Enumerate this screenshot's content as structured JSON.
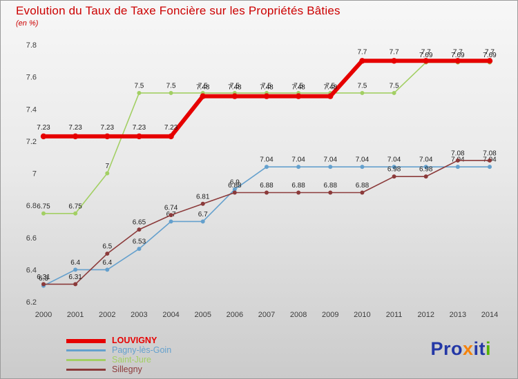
{
  "title": "Evolution du Taux de Taxe Foncière sur les Propriétés Bâties",
  "subtitle": "(en %)",
  "chart_data": {
    "type": "line",
    "x": [
      2000,
      2001,
      2002,
      2003,
      2004,
      2005,
      2006,
      2007,
      2008,
      2009,
      2010,
      2011,
      2012,
      2013,
      2014
    ],
    "xlabel": "",
    "ylabel": "",
    "ylim": [
      6.2,
      7.8
    ],
    "yticks": [
      6.2,
      6.4,
      6.6,
      6.8,
      7,
      7.2,
      7.4,
      7.6,
      7.8
    ],
    "grid": false,
    "legend_position": "bottom-left",
    "series": [
      {
        "name": "LOUVIGNY",
        "color": "#e60000",
        "thick": true,
        "values": [
          7.23,
          7.23,
          7.23,
          7.23,
          7.23,
          7.48,
          7.48,
          7.48,
          7.48,
          7.48,
          7.7,
          7.7,
          7.7,
          7.7,
          7.7
        ]
      },
      {
        "name": "Pagny-lès-Goin",
        "color": "#64a0cd",
        "thick": false,
        "values": [
          6.3,
          6.4,
          6.4,
          6.53,
          6.7,
          6.7,
          6.9,
          7.04,
          7.04,
          7.04,
          7.04,
          7.04,
          7.04,
          7.04,
          7.04
        ]
      },
      {
        "name": "Saint-Jure",
        "color": "#a2cf63",
        "thick": false,
        "values": [
          6.75,
          6.75,
          7,
          7.5,
          7.5,
          7.5,
          7.5,
          7.5,
          7.5,
          7.5,
          7.5,
          7.5,
          7.69,
          7.69,
          7.69
        ]
      },
      {
        "name": "Sillegny",
        "color": "#8b3a3a",
        "thick": false,
        "values": [
          6.31,
          6.31,
          6.5,
          6.65,
          6.74,
          6.81,
          6.88,
          6.88,
          6.88,
          6.88,
          6.88,
          6.98,
          6.98,
          7.08,
          7.08
        ]
      }
    ]
  },
  "logo": {
    "parts": [
      {
        "text": "Pro",
        "color": "#2438a6"
      },
      {
        "text": "x",
        "color": "#f5820b"
      },
      {
        "text": "it",
        "color": "#2438a6"
      },
      {
        "text": "i",
        "color": "#53b200"
      }
    ]
  },
  "colors": {
    "title_red": "#cc0000",
    "axis_text": "#3c3c3c",
    "point_label_text": "#1c1c1c"
  }
}
